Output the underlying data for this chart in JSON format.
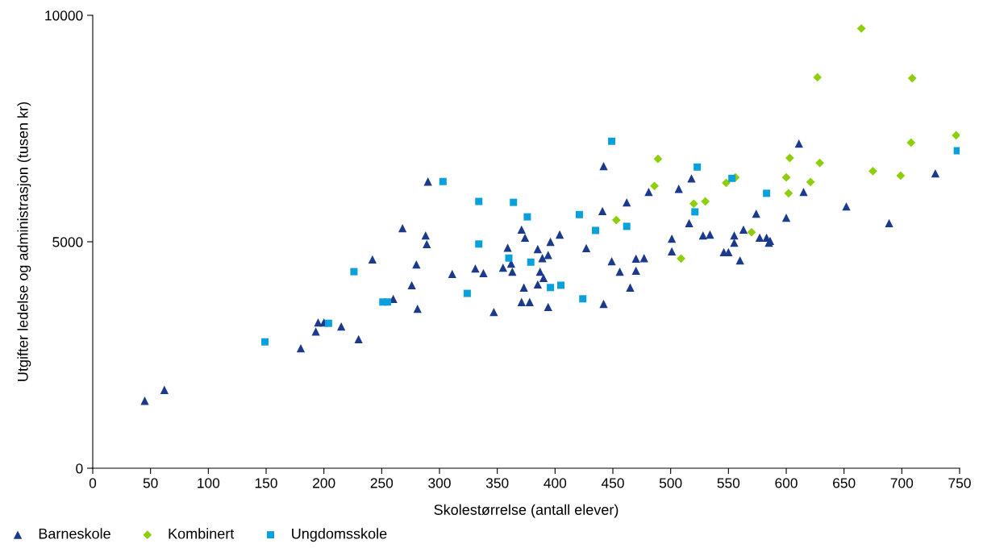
{
  "chart_data": {
    "type": "scatter",
    "xlabel": "Skolestørrelse (antall elever)",
    "ylabel": "Utgifter ledelse og administrasjon (tusen kr)",
    "xlim": [
      0,
      750
    ],
    "xticks": [
      0,
      50,
      100,
      150,
      200,
      250,
      300,
      350,
      400,
      450,
      500,
      550,
      600,
      650,
      700,
      750
    ],
    "ylim": [
      0,
      10000
    ],
    "yticks": [
      0,
      5000,
      10000
    ],
    "grid": false,
    "legend": "bottom left",
    "series": [
      {
        "name": "Barneskole",
        "color": "#1b3a8c",
        "marker": "triangle",
        "x": [
          45,
          62,
          180,
          193,
          195,
          200,
          215,
          230,
          242,
          260,
          268,
          276,
          280,
          281,
          288,
          289,
          290,
          311,
          331,
          338,
          347,
          355,
          359,
          362,
          363,
          371,
          373,
          374,
          371,
          378,
          385,
          385,
          387,
          389,
          390,
          394,
          396,
          394,
          404,
          427,
          441,
          442,
          442,
          449,
          456,
          462,
          465,
          470,
          470,
          477,
          481,
          501,
          501,
          507,
          516,
          518,
          528,
          534,
          546,
          550,
          555,
          555,
          560,
          563,
          574,
          577,
          583,
          585,
          586,
          600,
          611,
          615,
          652,
          689,
          729
        ],
        "values": [
          1490,
          1730,
          2650,
          3020,
          3220,
          3220,
          3130,
          2850,
          4610,
          3740,
          5300,
          4040,
          4500,
          3520,
          5140,
          4950,
          6330,
          4290,
          4410,
          4310,
          3450,
          4430,
          4870,
          4520,
          4340,
          5270,
          3990,
          5090,
          3670,
          3670,
          4840,
          4060,
          4340,
          4640,
          4200,
          4710,
          5000,
          3560,
          5160,
          4860,
          5680,
          6670,
          3630,
          4570,
          4340,
          5870,
          3990,
          4630,
          4360,
          4640,
          6100,
          5070,
          4790,
          6170,
          5410,
          6400,
          5140,
          5160,
          4770,
          4770,
          5140,
          4980,
          4590,
          5270,
          5620,
          5090,
          5090,
          4980,
          5020,
          5530,
          7170,
          6100,
          5780,
          5410,
          6510
        ]
      },
      {
        "name": "Kombinert",
        "color": "#8ccf0a",
        "marker": "diamond",
        "x": [
          453,
          486,
          489,
          509,
          520,
          530,
          548,
          556,
          570,
          600,
          602,
          603,
          621,
          627,
          629,
          665,
          675,
          699,
          708,
          709,
          747
        ],
        "values": [
          5480,
          6230,
          6830,
          4630,
          5840,
          5890,
          6300,
          6420,
          5210,
          6420,
          6070,
          6850,
          6320,
          8630,
          6740,
          9710,
          6560,
          6460,
          7190,
          8610,
          7350
        ]
      },
      {
        "name": "Ungdomsskole",
        "color": "#0aa0dc",
        "marker": "square",
        "x": [
          149,
          204,
          226,
          251,
          255,
          303,
          324,
          334,
          334,
          360,
          364,
          376,
          379,
          396,
          405,
          421,
          424,
          435,
          449,
          462,
          521,
          523,
          553,
          583,
          748
        ],
        "values": [
          2790,
          3200,
          4340,
          3670,
          3670,
          6330,
          3860,
          5890,
          4950,
          4640,
          5870,
          5550,
          4550,
          3990,
          4040,
          5600,
          3740,
          5250,
          7220,
          5340,
          5660,
          6650,
          6400,
          6070,
          7010
        ]
      }
    ]
  }
}
